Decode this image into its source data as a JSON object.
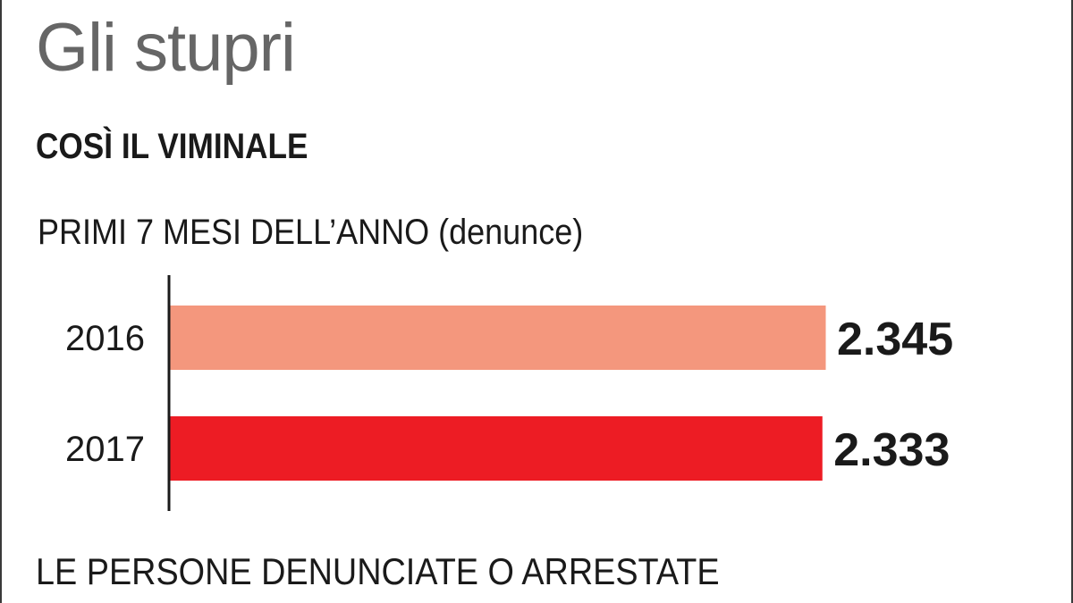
{
  "headline": "Gli stupri",
  "subhead": "COSÌ IL VIMINALE",
  "footer": "LE PERSONE DENUNCIATE O ARRESTATE",
  "chart_data": {
    "type": "bar",
    "orientation": "horizontal",
    "title": "PRIMI 7 MESI DELL’ANNO (denunce)",
    "categories": [
      "2016",
      "2017"
    ],
    "values": [
      2345,
      2333
    ],
    "value_labels": [
      "2.345",
      "2.333"
    ],
    "colors": [
      "#f4977d",
      "#ed1c24"
    ],
    "axis_color": "#1a1a1a",
    "grid": false,
    "legend": "none"
  }
}
